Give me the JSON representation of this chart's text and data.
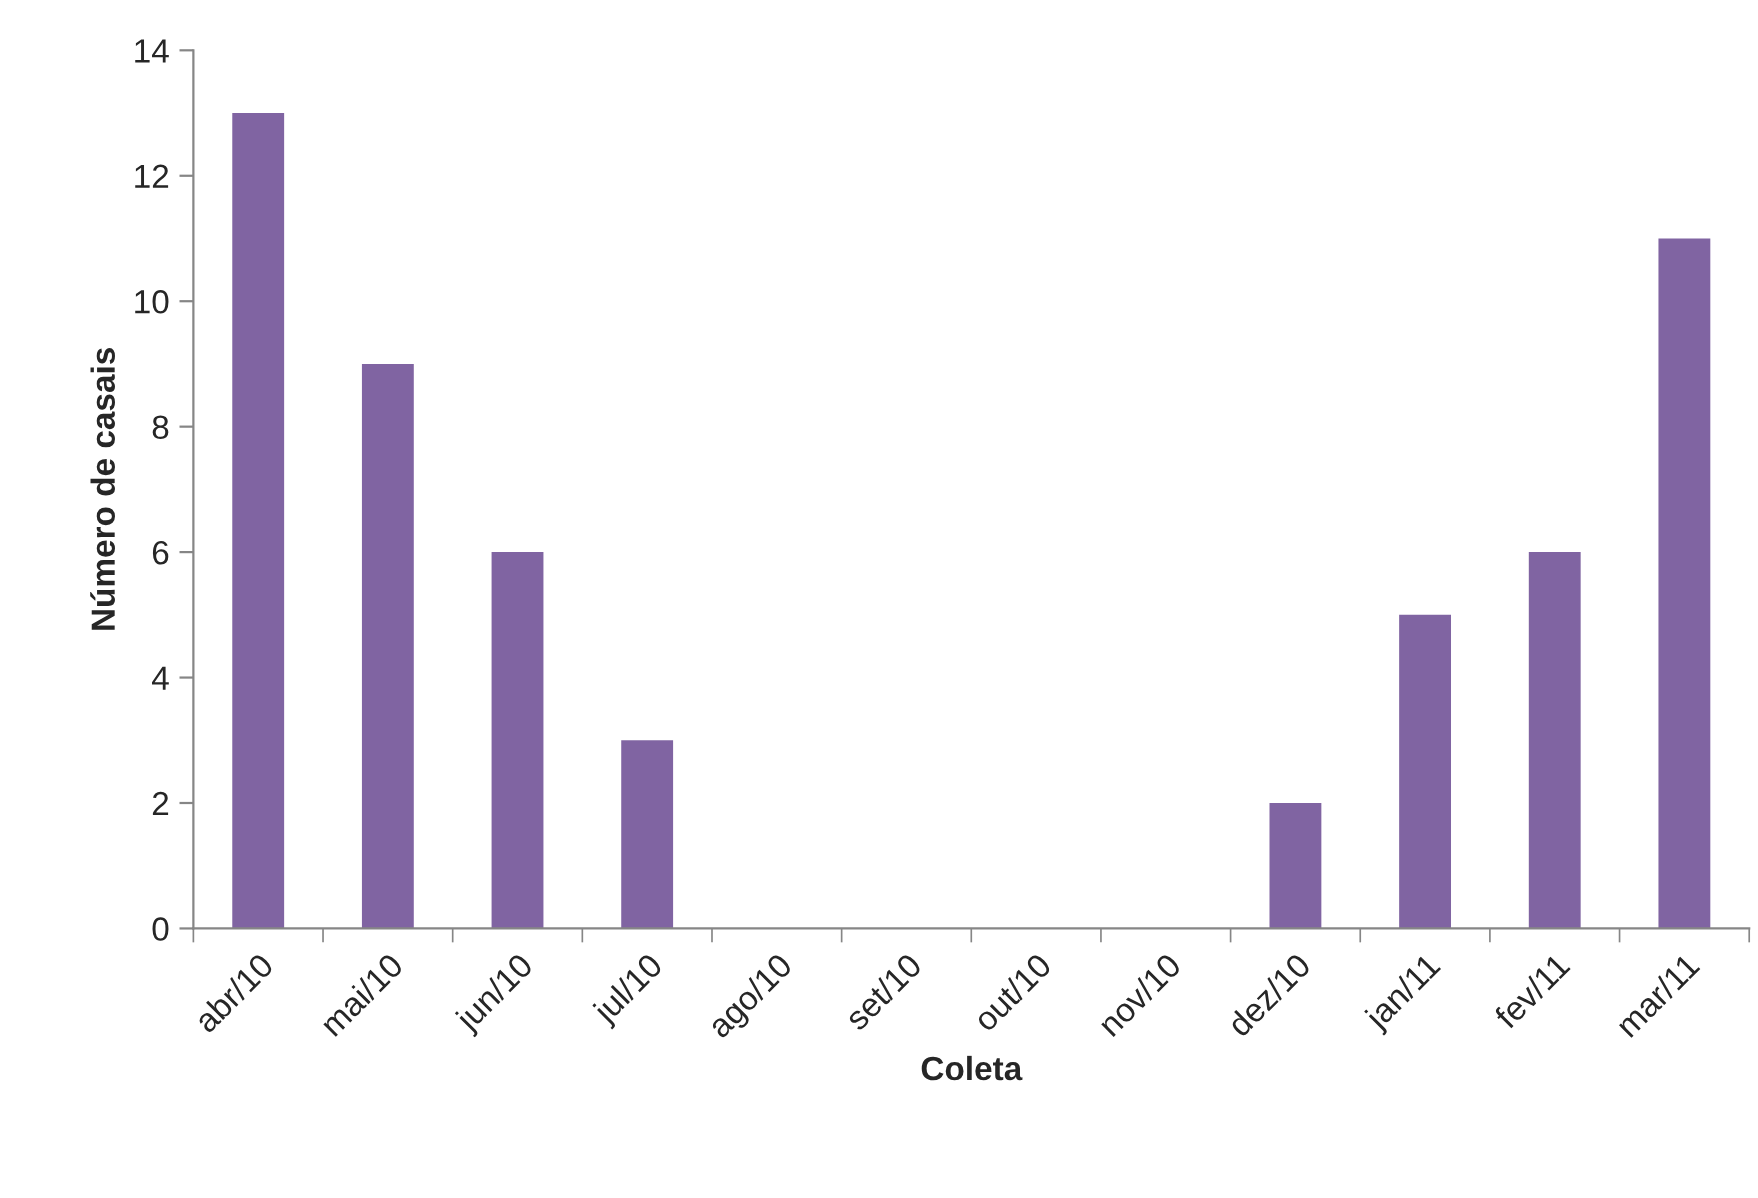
{
  "chart_data": {
    "type": "bar",
    "xlabel": "Coleta",
    "ylabel": "Número de casais",
    "categories": [
      "abr/10",
      "mai/10",
      "jun/10",
      "jul/10",
      "ago/10",
      "set/10",
      "out/10",
      "nov/10",
      "dez/10",
      "jan/11",
      "fev/11",
      "mar/11"
    ],
    "values": [
      13,
      9,
      6,
      3,
      0,
      0,
      0,
      0,
      2,
      5,
      6,
      11
    ],
    "color": "#8064a2",
    "ylim": [
      0,
      14
    ],
    "yticks": [
      0,
      2,
      4,
      6,
      8,
      10,
      12,
      14
    ],
    "grid": false,
    "legend": false
  }
}
